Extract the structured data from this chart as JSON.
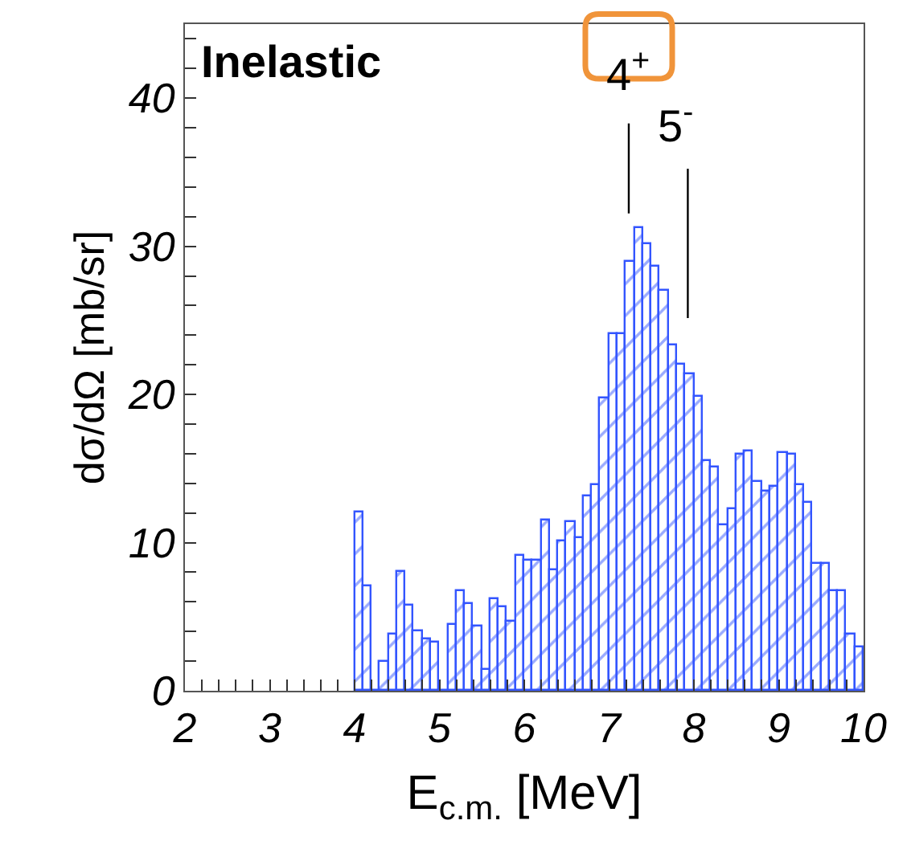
{
  "chart_data": {
    "type": "histogram",
    "xlabel": "E$_{c.m.}$ [MeV]",
    "ylabel": "dσ/dΩ [mb/sr]",
    "bins": [
      4.0,
      4.1,
      4.2,
      4.3,
      4.4,
      4.5,
      4.6,
      4.7,
      4.8,
      4.9,
      5.0,
      5.1,
      5.2,
      5.3,
      5.4,
      5.5,
      5.6,
      5.7,
      5.8,
      5.9,
      6.0,
      6.1,
      6.2,
      6.3,
      6.4,
      6.5,
      6.6,
      6.7,
      6.8,
      6.9,
      7.0,
      7.1,
      7.2,
      7.3,
      7.4,
      7.5,
      7.6,
      7.7,
      7.8,
      7.9,
      8.0,
      8.1,
      8.2,
      8.3,
      8.4,
      8.5,
      8.6,
      8.7,
      8.8,
      8.9,
      9.0,
      9.1,
      9.2,
      9.3,
      9.4,
      9.5,
      9.6,
      9.7,
      9.8,
      9.9,
      10.0
    ],
    "values": [
      12,
      7,
      0,
      2,
      3.8,
      8,
      5.8,
      4,
      3.5,
      3.2,
      0,
      4.4,
      6.7,
      5.9,
      4.3,
      1.4,
      6.2,
      5.6,
      4.7,
      9.1,
      8.8,
      8.8,
      11.5,
      8.1,
      10.1,
      11.4,
      10.3,
      13.1,
      13.9,
      19.7,
      24.1,
      24.1,
      29,
      31.2,
      30.1,
      28.6,
      27,
      23.3,
      22,
      21.4,
      19.8,
      15.5,
      15.1,
      11.2,
      12.2,
      15.9,
      16.2,
      14.1,
      13.4,
      13.8,
      16.1,
      15.9,
      13.9,
      12.7,
      8.6,
      8.6,
      6.7,
      6.7,
      3.8,
      2.9
    ],
    "color": "#3355ff",
    "xlim": [
      2,
      10
    ],
    "xticks": [
      2,
      {
        "value": 2.2,
        "label": null
      },
      {
        "value": 2.4,
        "label": null
      },
      {
        "value": 2.6,
        "label": null
      },
      {
        "value": 2.8,
        "label": null
      },
      3,
      {
        "value": 3.2,
        "label": null
      },
      {
        "value": 3.4,
        "label": null
      },
      {
        "value": 3.6,
        "label": null
      },
      {
        "value": 3.8,
        "label": null
      },
      4,
      {
        "value": 4.2,
        "label": null
      },
      {
        "value": 4.4,
        "label": null
      },
      {
        "value": 4.6,
        "label": null
      },
      {
        "value": 4.8,
        "label": null
      },
      5,
      {
        "value": 5.2,
        "label": null
      },
      {
        "value": 5.4,
        "label": null
      },
      {
        "value": 5.6,
        "label": null
      },
      {
        "value": 5.8,
        "label": null
      },
      6,
      {
        "value": 6.2,
        "label": null
      },
      {
        "value": 6.4,
        "label": null
      },
      {
        "value": 6.6,
        "label": null
      },
      {
        "value": 6.8,
        "label": null
      },
      7,
      {
        "value": 7.2,
        "label": null
      },
      {
        "value": 7.4,
        "label": null
      },
      {
        "value": 7.6,
        "label": null
      },
      {
        "value": 7.8,
        "label": null
      },
      8,
      {
        "value": 8.2,
        "label": null
      },
      {
        "value": 8.4,
        "label": null
      },
      {
        "value": 8.6,
        "label": null
      },
      {
        "value": 8.8,
        "label": null
      },
      9,
      {
        "value": 9.2,
        "label": null
      },
      {
        "value": 9.4,
        "label": null
      },
      {
        "value": 9.6,
        "label": null
      },
      {
        "value": 9.8,
        "label": null
      },
      10
    ],
    "ylim": [
      0,
      45
    ],
    "yticks": [
      0,
      {
        "value": 2,
        "label": null
      },
      {
        "value": 4,
        "label": null
      },
      {
        "value": 6,
        "label": null
      },
      {
        "value": 8,
        "label": null
      },
      10,
      {
        "value": 12,
        "label": null
      },
      {
        "value": 14,
        "label": null
      },
      {
        "value": 16,
        "label": null
      },
      {
        "value": 18,
        "label": null
      },
      20,
      {
        "value": 22,
        "label": null
      },
      {
        "value": 24,
        "label": null
      },
      {
        "value": 26,
        "label": null
      },
      {
        "value": 28,
        "label": null
      },
      30,
      {
        "value": 32,
        "label": null
      },
      {
        "value": 34,
        "label": null
      },
      {
        "value": 36,
        "label": null
      },
      {
        "value": 38,
        "label": null
      },
      40,
      {
        "value": 42,
        "label": null
      },
      {
        "value": 44,
        "label": null
      }
    ],
    "annotations": [
      "Inelastic",
      "4$^{+}$",
      "5$^{-}$"
    ]
  }
}
